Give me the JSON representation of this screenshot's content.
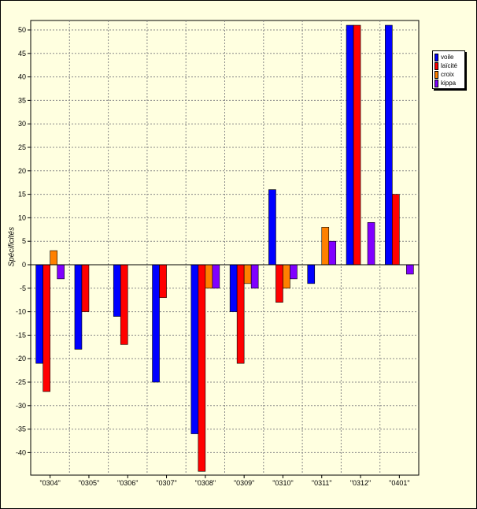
{
  "chart_data": {
    "type": "bar",
    "title": "",
    "xlabel": "",
    "ylabel": "Spécificités",
    "categories": [
      "\"0304\"",
      "\"0305\"",
      "\"0306\"",
      "\"0307\"",
      "\"0308\"",
      "\"0309\"",
      "\"0310\"",
      "\"0311\"",
      "\"0312\"",
      "\"0401\""
    ],
    "yticks": [
      50,
      45,
      40,
      35,
      30,
      25,
      20,
      15,
      10,
      5,
      0,
      -5,
      -10,
      -15,
      -20,
      -25,
      -30,
      -35,
      -40
    ],
    "ylim": [
      -45,
      52
    ],
    "grid": true,
    "legend_position": "right",
    "series": [
      {
        "name": "voile",
        "color": "#0000ff",
        "values": [
          -21,
          -18,
          -11,
          -25,
          -36,
          -10,
          16,
          -4,
          51,
          51
        ]
      },
      {
        "name": "laïcité",
        "color": "#ff0000",
        "values": [
          -27,
          -10,
          -17,
          -7,
          -44,
          -21,
          -8,
          0,
          51,
          15
        ]
      },
      {
        "name": "croix",
        "color": "#ff8000",
        "values": [
          3,
          0,
          0,
          0,
          -5,
          -4,
          -5,
          8,
          0,
          0
        ]
      },
      {
        "name": "kippa",
        "color": "#8000ff",
        "values": [
          -3,
          0,
          0,
          0,
          -5,
          -5,
          -3,
          5,
          9,
          -2
        ]
      }
    ]
  }
}
